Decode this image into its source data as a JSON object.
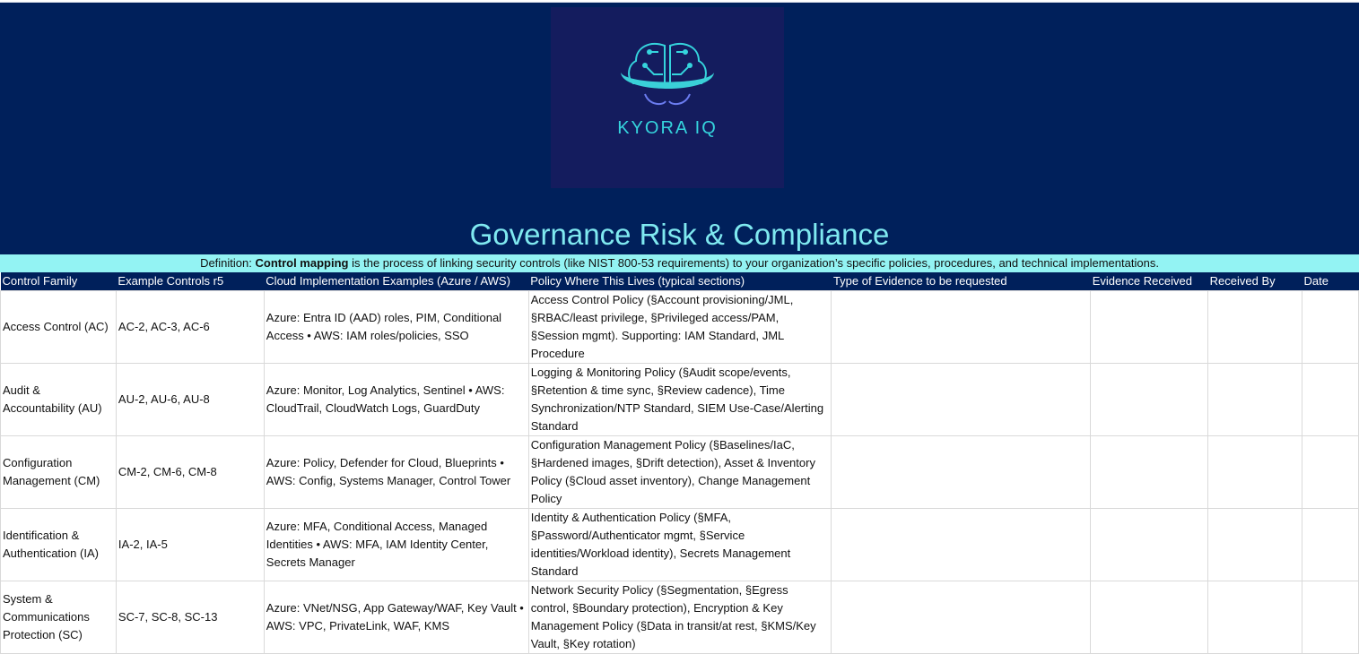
{
  "logo": {
    "text": "KYORA IQ",
    "icon": "brain-circuit-icon",
    "colors": {
      "cyan": "#35d4dd",
      "violet": "#6b7cf0"
    }
  },
  "title": "Governance Risk & Compliance",
  "definition": {
    "prefix": "Definition: ",
    "term": "Control mapping",
    "rest": " is the process of linking security controls (like NIST 800-53 requirements) to your organization’s specific policies, procedures, and technical implementations."
  },
  "colors": {
    "navy": "#00205b",
    "cyan_band": "#93f3f3",
    "title": "#7fe9f0"
  },
  "columns": [
    "Control Family",
    "Example Controls r5",
    "Cloud Implementation Examples (Azure / AWS)",
    "Policy Where This Lives (typical sections)",
    "Type of Evidence to be requested",
    "Evidence Received",
    "Received By",
    "Date"
  ],
  "rows": [
    {
      "family": "Access Control (AC)",
      "controls": "AC-2, AC-3, AC-6",
      "cloud": "Azure: Entra ID (AAD) roles, PIM, Conditional Access • AWS: IAM roles/policies, SSO",
      "policy": "Access Control Policy (§Account provisioning/JML, §RBAC/least privilege, §Privileged access/PAM, §Session mgmt). Supporting: IAM Standard, JML Procedure",
      "evidence": "",
      "received": "",
      "by": "",
      "date": ""
    },
    {
      "family": "Audit & Accountability (AU)",
      "controls": "AU-2, AU-6, AU-8",
      "cloud": "Azure: Monitor, Log Analytics, Sentinel • AWS: CloudTrail, CloudWatch Logs, GuardDuty",
      "policy": "Logging & Monitoring Policy (§Audit scope/events, §Retention & time sync, §Review cadence), Time Synchronization/NTP Standard, SIEM Use-Case/Alerting Standard",
      "evidence": "",
      "received": "",
      "by": "",
      "date": ""
    },
    {
      "family": "Configuration Management (CM)",
      "controls": "CM-2, CM-6, CM-8",
      "cloud": "Azure: Policy, Defender for Cloud, Blueprints • AWS: Config, Systems Manager, Control Tower",
      "policy": "Configuration Management Policy (§Baselines/IaC, §Hardened images, §Drift detection), Asset & Inventory Policy (§Cloud asset inventory), Change Management Policy",
      "evidence": "",
      "received": "",
      "by": "",
      "date": ""
    },
    {
      "family": "Identification & Authentication (IA)",
      "controls": "IA-2, IA-5",
      "cloud": "Azure: MFA, Conditional Access, Managed Identities • AWS: MFA, IAM Identity Center, Secrets Manager",
      "policy": "Identity & Authentication Policy (§MFA, §Password/Authenticator mgmt, §Service identities/Workload identity), Secrets Management Standard",
      "evidence": "",
      "received": "",
      "by": "",
      "date": ""
    },
    {
      "family": "System & Communications Protection (SC)",
      "controls": "SC-7, SC-8, SC-13",
      "cloud": "Azure: VNet/NSG, App Gateway/WAF, Key Vault • AWS: VPC, PrivateLink, WAF, KMS",
      "policy": "Network Security Policy (§Segmentation, §Egress control, §Boundary protection), Encryption & Key Management Policy (§Data in transit/at rest, §KMS/Key Vault, §Key rotation)",
      "evidence": "",
      "received": "",
      "by": "",
      "date": ""
    }
  ]
}
